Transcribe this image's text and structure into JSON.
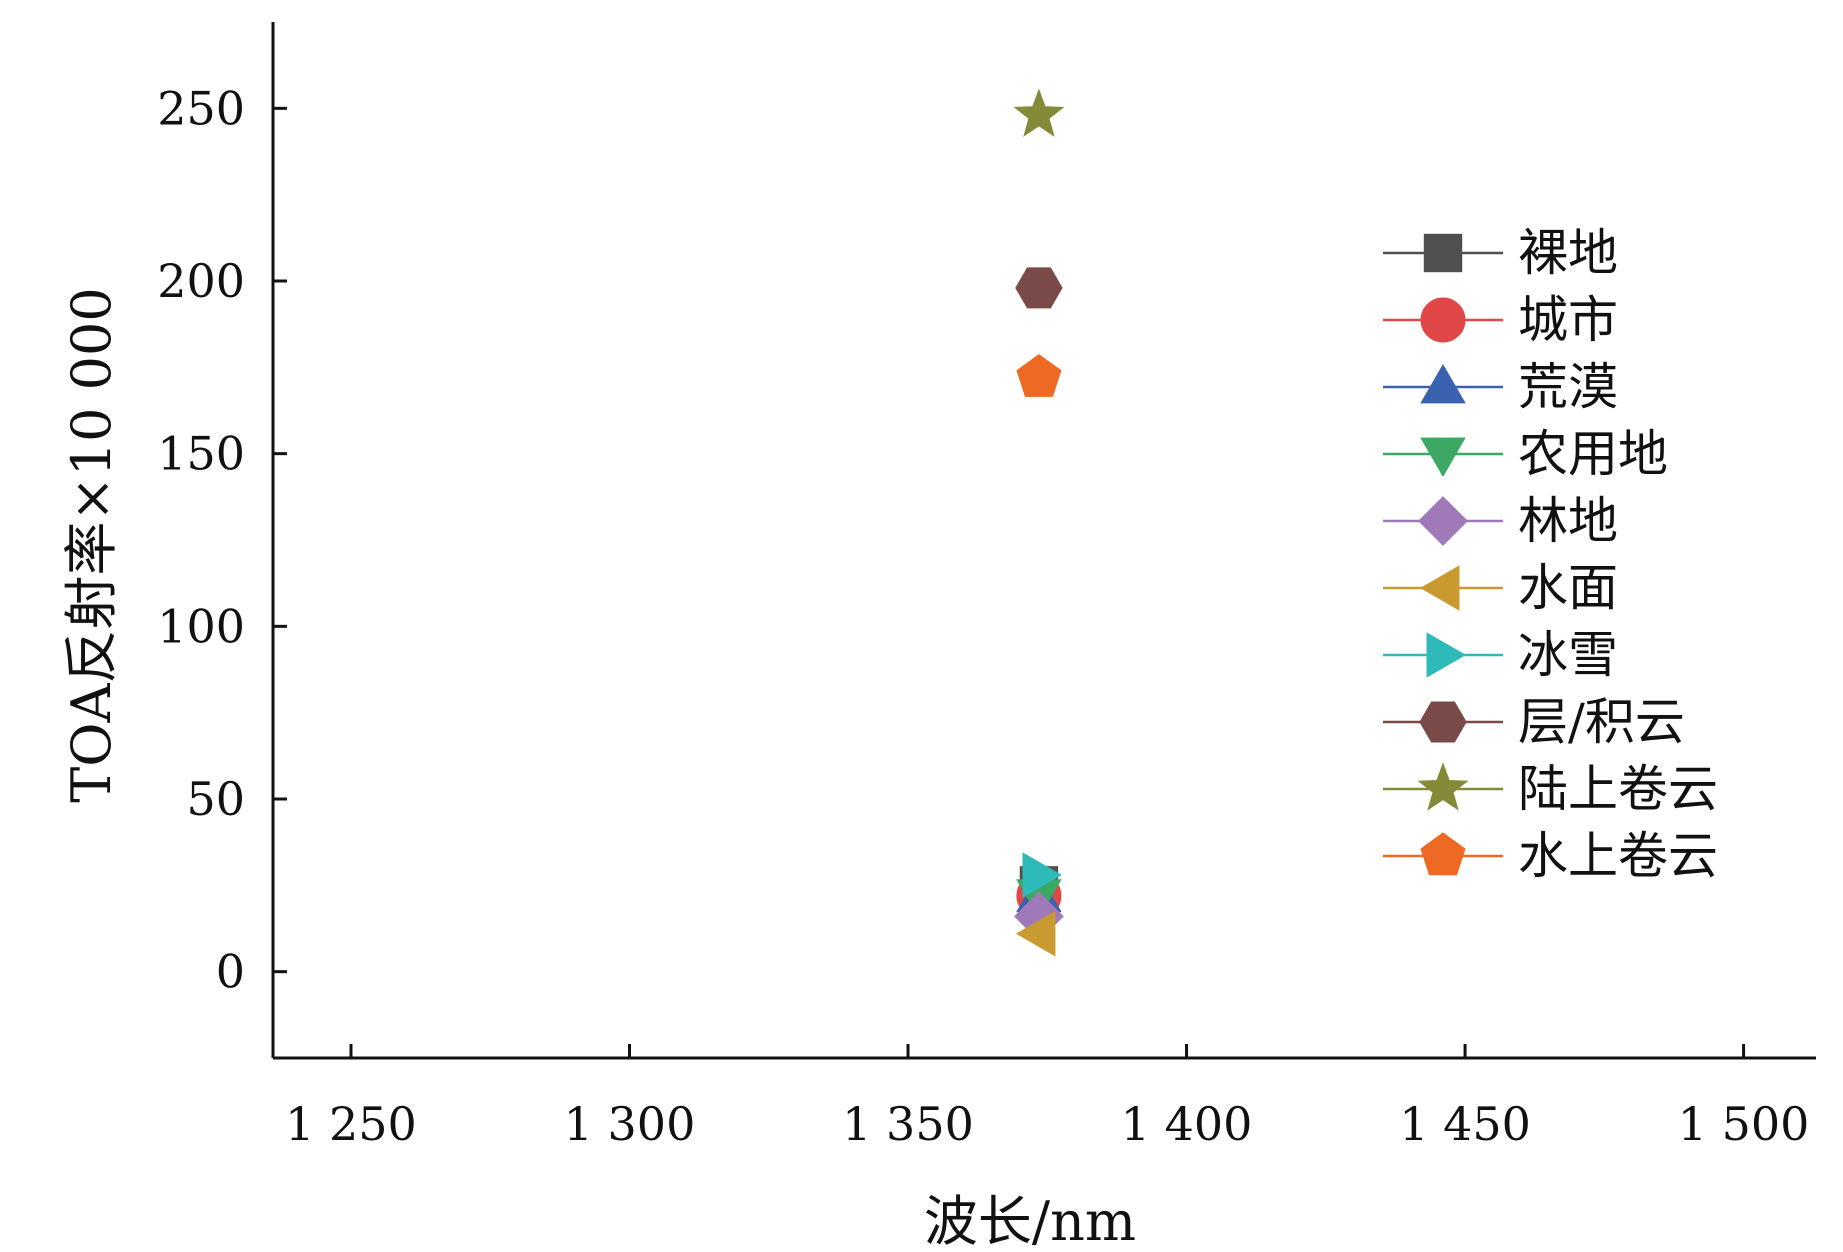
{
  "chart_data": {
    "type": "scatter",
    "xlabel": "波长/nm",
    "ylabel": "TOA反射率×10 000",
    "xlim": [
      1236,
      1513
    ],
    "ylim": [
      -25,
      275
    ],
    "x_ticks": [
      1250,
      1300,
      1350,
      1400,
      1450,
      1500
    ],
    "x_tick_labels": [
      "1 250",
      "1 300",
      "1 350",
      "1 400",
      "1 450",
      "1 500"
    ],
    "y_ticks": [
      0,
      50,
      100,
      150,
      200,
      250
    ],
    "y_tick_labels": [
      "0",
      "50",
      "100",
      "150",
      "200",
      "250"
    ],
    "grid": false,
    "legend_position": "right",
    "series": [
      {
        "name": "裸地",
        "marker": "square",
        "color": "#505050",
        "x": [
          1373.5
        ],
        "y": [
          25
        ]
      },
      {
        "name": "城市",
        "marker": "circle",
        "color": "#e04848",
        "x": [
          1373.5
        ],
        "y": [
          22
        ]
      },
      {
        "name": "荒漠",
        "marker": "triangle-up",
        "color": "#3a62b0",
        "x": [
          1373.5
        ],
        "y": [
          22
        ]
      },
      {
        "name": "农用地",
        "marker": "triangle-down",
        "color": "#3ca864",
        "x": [
          1373.5
        ],
        "y": [
          22
        ]
      },
      {
        "name": "林地",
        "marker": "diamond",
        "color": "#a07ab8",
        "x": [
          1373.5
        ],
        "y": [
          16
        ]
      },
      {
        "name": "水面",
        "marker": "triangle-left",
        "color": "#c89a30",
        "x": [
          1373.5
        ],
        "y": [
          11
        ]
      },
      {
        "name": "冰雪",
        "marker": "triangle-right",
        "color": "#2ebab8",
        "x": [
          1373.5
        ],
        "y": [
          28
        ]
      },
      {
        "name": "层/积云",
        "marker": "hexagon",
        "color": "#7a4a48",
        "x": [
          1373.5
        ],
        "y": [
          198
        ]
      },
      {
        "name": "陆上卷云",
        "marker": "star",
        "color": "#858a38",
        "x": [
          1373.5
        ],
        "y": [
          248
        ]
      },
      {
        "name": "水上卷云",
        "marker": "pentagon",
        "color": "#ee6a24",
        "x": [
          1373.5
        ],
        "y": [
          172
        ]
      }
    ]
  }
}
